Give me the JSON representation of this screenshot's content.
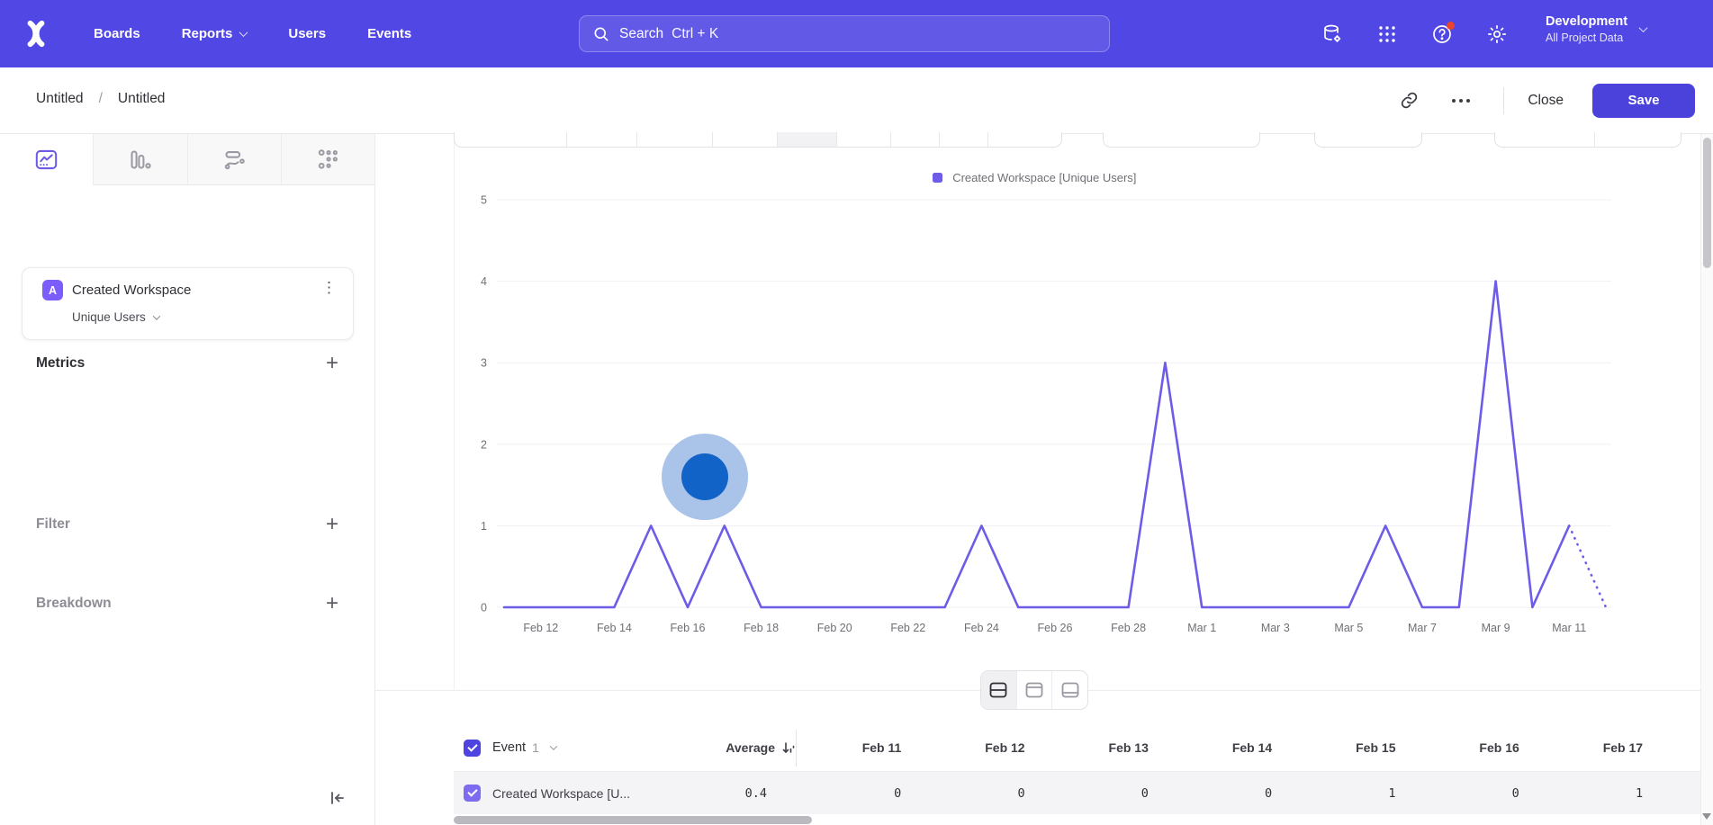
{
  "nav": {
    "items": [
      "Boards",
      "Reports",
      "Users",
      "Events"
    ],
    "search_placeholder": "Search",
    "search_shortcut": "Ctrl + K",
    "project_name": "Development",
    "project_scope": "All Project Data"
  },
  "toolbar": {
    "breadcrumb_1": "Untitled",
    "breadcrumb_2": "Untitled",
    "close_label": "Close",
    "save_label": "Save"
  },
  "sidebar": {
    "metrics_title": "Metrics",
    "metric_badge": "A",
    "metric_name": "Created Workspace",
    "metric_measure": "Unique Users",
    "filter_title": "Filter",
    "breakdown_title": "Breakdown"
  },
  "chart_data": {
    "type": "line",
    "title": "",
    "legend": [
      "Created Workspace [Unique Users]"
    ],
    "x": [
      "Feb 11",
      "Feb 12",
      "Feb 13",
      "Feb 14",
      "Feb 15",
      "Feb 16",
      "Feb 17",
      "Feb 18",
      "Feb 19",
      "Feb 20",
      "Feb 21",
      "Feb 22",
      "Feb 23",
      "Feb 24",
      "Feb 25",
      "Feb 26",
      "Feb 27",
      "Feb 28",
      "Feb 29",
      "Mar 1",
      "Mar 2",
      "Mar 3",
      "Mar 4",
      "Mar 5",
      "Mar 6",
      "Mar 7",
      "Mar 8",
      "Mar 9",
      "Mar 10",
      "Mar 11",
      "Mar 12"
    ],
    "series": [
      {
        "name": "Created Workspace [Unique Users]",
        "values": [
          0,
          0,
          0,
          0,
          1,
          0,
          1,
          0,
          0,
          0,
          0,
          0,
          0,
          1,
          0,
          0,
          0,
          0,
          3,
          0,
          0,
          0,
          0,
          0,
          1,
          0,
          0,
          4,
          0,
          1,
          0
        ]
      }
    ],
    "x_tick_labels": [
      "Feb 12",
      "Feb 14",
      "Feb 16",
      "Feb 18",
      "Feb 20",
      "Feb 22",
      "Feb 24",
      "Feb 26",
      "Feb 28",
      "Mar 1",
      "Mar 3",
      "Mar 5",
      "Mar 7",
      "Mar 9",
      "Mar 11"
    ],
    "y_ticks": [
      0,
      1,
      2,
      3,
      4,
      5
    ],
    "ylim": [
      0,
      5
    ],
    "grid": true,
    "legend_position": "top",
    "last_segment_dotted": true,
    "line_color": "#6C5CE7"
  },
  "table": {
    "event_label": "Event",
    "event_number": "1",
    "average_label": "Average",
    "columns": [
      "Feb 11",
      "Feb 12",
      "Feb 13",
      "Feb 14",
      "Feb 15",
      "Feb 16",
      "Feb 17"
    ],
    "rows": [
      {
        "name": "Created Workspace [U...",
        "average": "0.4",
        "values": [
          "0",
          "0",
          "0",
          "0",
          "1",
          "0",
          "1"
        ]
      }
    ]
  },
  "colors": {
    "nav_bg": "#5147e5",
    "accent": "#4b41db",
    "line": "#6C5CE7",
    "badge": "#7c5cfa",
    "notification_dot": "#e8442e",
    "cursor_inner": "#1263c8",
    "cursor_outer": "#a9c3e9"
  }
}
